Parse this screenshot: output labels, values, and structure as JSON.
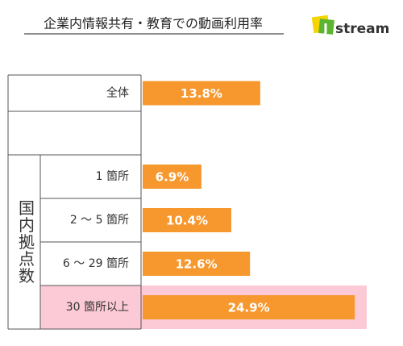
{
  "chart_data": {
    "type": "bar",
    "orientation": "horizontal",
    "title": "企業内情報共有・教育での動画利用率",
    "logo": "stream",
    "group_label": "国内拠点数",
    "categories": [
      "全体",
      null,
      "1 箇所",
      "2 ～ 5 箇所",
      "6 ～ 29 箇所",
      "30 箇所以上"
    ],
    "values": [
      13.8,
      null,
      6.9,
      10.4,
      12.6,
      24.9
    ],
    "value_labels": [
      "13.8%",
      null,
      "6.9%",
      "10.4%",
      "12.6%",
      "24.9%"
    ],
    "color": "#f7982f",
    "highlight_color": "#fcc9d6"
  }
}
